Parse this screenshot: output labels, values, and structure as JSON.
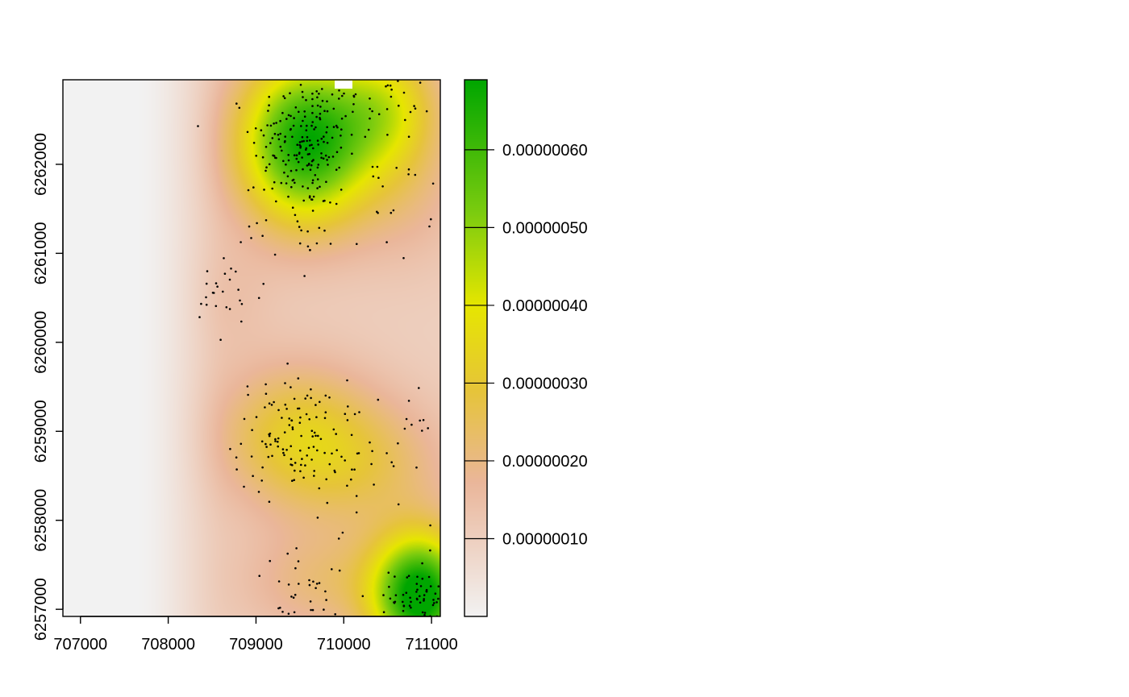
{
  "chart_data": {
    "type": "heatmap",
    "title": "",
    "xlabel": "",
    "ylabel": "",
    "xlim": [
      706800,
      711100
    ],
    "ylim": [
      6256920,
      6262950
    ],
    "x_ticks": [
      707000,
      708000,
      709000,
      710000,
      711000
    ],
    "x_tick_labels": [
      "707000",
      "708000",
      "709000",
      "710000",
      "711000"
    ],
    "y_ticks": [
      6257000,
      6258000,
      6259000,
      6260000,
      6261000,
      6262000
    ],
    "y_tick_labels": [
      "6257000",
      "6258000",
      "6259000",
      "6260000",
      "6261000",
      "6262000"
    ],
    "colorbar": {
      "min": 0.0,
      "max": 6.9e-07,
      "ticks": [
        1e-07,
        2e-07,
        3e-07,
        4e-07,
        5e-07,
        6e-07
      ],
      "tick_labels": [
        "0.00000010",
        "0.00000020",
        "0.00000030",
        "0.00000040",
        "0.00000050",
        "0.00000060"
      ],
      "colors": [
        "#f2f2f2",
        "#eab69a",
        "#e6c43a",
        "#e6e600",
        "#7dcc0f",
        "#00a600"
      ]
    },
    "density_field": {
      "background": 1e-07,
      "west_edge_falloff_x": [
        707600,
        708700
      ],
      "kernels": [
        {
          "x": 709550,
          "y": 6262250,
          "sx": 520,
          "sy": 650,
          "amp": 5.7e-07
        },
        {
          "x": 710500,
          "y": 6262650,
          "sx": 420,
          "sy": 500,
          "amp": 2.5e-07
        },
        {
          "x": 710880,
          "y": 6257150,
          "sx": 380,
          "sy": 480,
          "amp": 6.2e-07
        },
        {
          "x": 709450,
          "y": 6258950,
          "sx": 620,
          "sy": 560,
          "amp": 2e-07
        },
        {
          "x": 710300,
          "y": 6258600,
          "sx": 650,
          "sy": 520,
          "amp": 1.2e-07
        },
        {
          "x": 709800,
          "y": 6257300,
          "sx": 650,
          "sy": 420,
          "amp": 1.1e-07
        },
        {
          "x": 710700,
          "y": 6261700,
          "sx": 500,
          "sy": 600,
          "amp": 8e-08
        },
        {
          "x": 708700,
          "y": 6260500,
          "sx": 350,
          "sy": 450,
          "amp": 4e-08
        }
      ]
    },
    "points": {
      "marker": "dot",
      "color": "#000000",
      "clusters": [
        {
          "cx": 709550,
          "cy": 6262250,
          "sx": 300,
          "sy": 380,
          "n": 190
        },
        {
          "cx": 710500,
          "cy": 6262700,
          "sx": 260,
          "sy": 250,
          "n": 35
        },
        {
          "cx": 710880,
          "cy": 6257150,
          "sx": 170,
          "sy": 220,
          "n": 70
        },
        {
          "cx": 709400,
          "cy": 6258950,
          "sx": 330,
          "sy": 320,
          "n": 110
        },
        {
          "cx": 710300,
          "cy": 6258700,
          "sx": 380,
          "sy": 360,
          "n": 45
        },
        {
          "cx": 709600,
          "cy": 6257200,
          "sx": 350,
          "sy": 230,
          "n": 35
        },
        {
          "cx": 708650,
          "cy": 6260450,
          "sx": 200,
          "sy": 250,
          "n": 25
        },
        {
          "cx": 709550,
          "cy": 6261350,
          "sx": 350,
          "sy": 220,
          "n": 30
        },
        {
          "cx": 710600,
          "cy": 6261600,
          "sx": 200,
          "sy": 350,
          "n": 20
        }
      ]
    }
  }
}
